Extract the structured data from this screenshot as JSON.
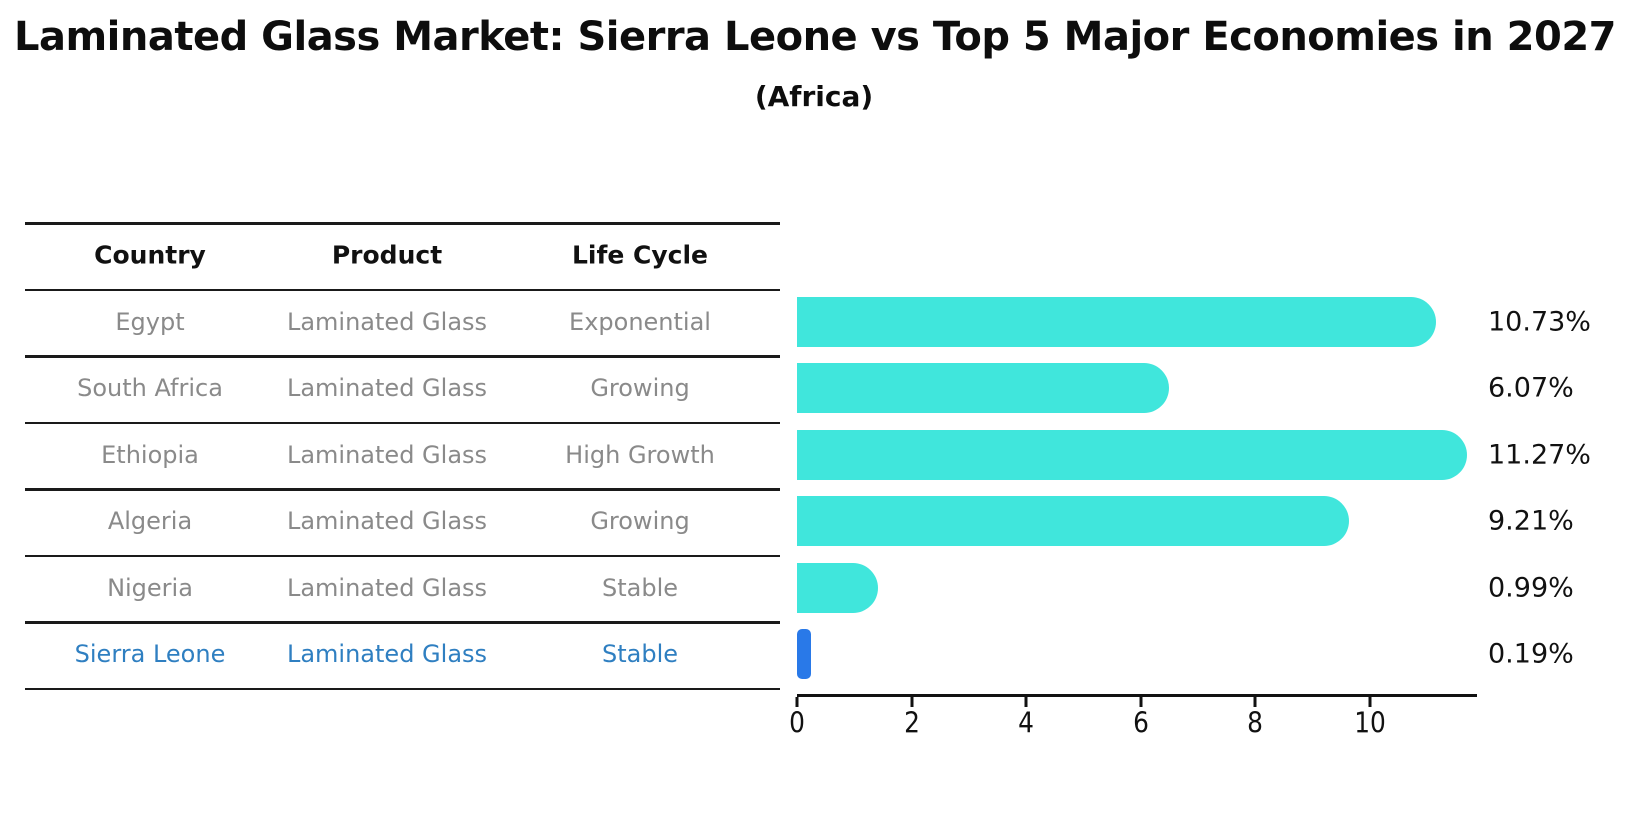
{
  "title": "Laminated Glass Market: Sierra Leone vs Top 5 Major Economies in 2027",
  "subtitle": "(Africa)",
  "table": {
    "headers": [
      "Country",
      "Product",
      "Life Cycle"
    ],
    "rows": [
      {
        "country": "Egypt",
        "product": "Laminated Glass",
        "life_cycle": "Exponential",
        "highlight": false
      },
      {
        "country": "South Africa",
        "product": "Laminated Glass",
        "life_cycle": "Growing",
        "highlight": false
      },
      {
        "country": "Ethiopia",
        "product": "Laminated Glass",
        "life_cycle": "High Growth",
        "highlight": false
      },
      {
        "country": "Algeria",
        "product": "Laminated Glass",
        "life_cycle": "Growing",
        "highlight": false
      },
      {
        "country": "Nigeria",
        "product": "Laminated Glass",
        "life_cycle": "Stable",
        "highlight": false
      },
      {
        "country": "Sierra Leone",
        "product": "Laminated Glass",
        "life_cycle": "Stable",
        "highlight": true
      }
    ]
  },
  "chart_data": {
    "type": "bar",
    "orientation": "horizontal",
    "title": "Laminated Glass Market: Sierra Leone vs Top 5 Major Economies in 2027",
    "subtitle": "(Africa)",
    "categories": [
      "Egypt",
      "South Africa",
      "Ethiopia",
      "Algeria",
      "Nigeria",
      "Sierra Leone"
    ],
    "values": [
      10.73,
      6.07,
      11.27,
      9.21,
      0.99,
      0.19
    ],
    "value_labels": [
      "10.73%",
      "6.07%",
      "11.27%",
      "9.21%",
      "0.99%",
      "0.19%"
    ],
    "x_ticks": [
      0,
      2,
      4,
      6,
      8,
      10
    ],
    "xlim": [
      0,
      11.83
    ],
    "xlabel": "",
    "ylabel": "",
    "grid": false,
    "legend": false,
    "highlight_index": 5
  },
  "colors": {
    "bar": "#40e6dc",
    "highlight_bar": "#2979e8",
    "highlight_text": "#2f7fc1",
    "table_text": "#8a8a8a",
    "heading_text": "#111111"
  }
}
